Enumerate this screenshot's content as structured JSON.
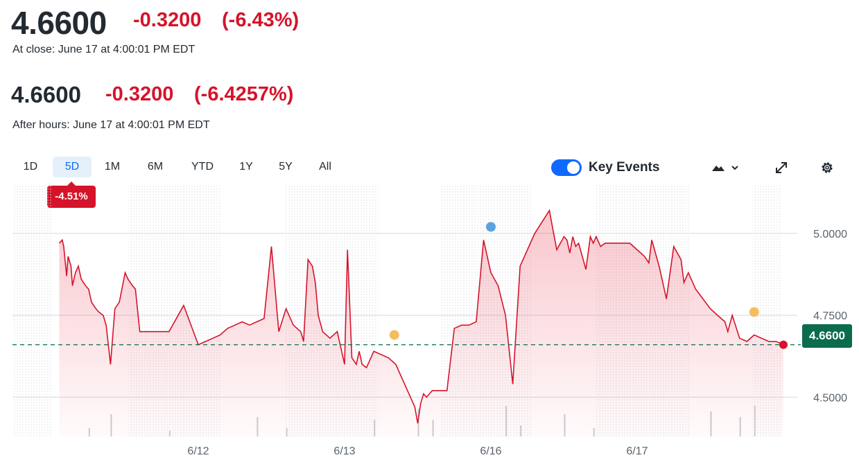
{
  "quote": {
    "price": "4.6600",
    "change": "-0.3200",
    "change_pct": "(-6.43%)",
    "close_label": "At close: June 17 at 4:00:01 PM EDT"
  },
  "after_hours": {
    "price": "4.6600",
    "change": "-0.3200",
    "change_pct": "(-6.4257%)",
    "label": "After hours: June 17 at 4:00:01 PM EDT"
  },
  "range_tabs": [
    "1D",
    "5D",
    "1M",
    "6M",
    "YTD",
    "1Y",
    "5Y",
    "All"
  ],
  "active_tab": "5D",
  "period_change": "-4.51%",
  "key_events_label": "Key Events",
  "current_price_tag": "4.6600",
  "colors": {
    "down": "#d5132a",
    "accent": "#0f69ff",
    "price_tag": "#0b6b4f",
    "event_blue": "#5aa3e0",
    "event_orange": "#f6bd60"
  },
  "icons": [
    "moon-icon",
    "mountain-chart-type-icon",
    "chevron-down-icon",
    "expand-icon",
    "gear-icon"
  ],
  "chart_data": {
    "type": "area",
    "x_ticks": [
      "6/12",
      "6/13",
      "6/16",
      "6/17"
    ],
    "y_ticks": [
      "5.0000",
      "4.7500",
      "4.5000"
    ],
    "ylim": [
      4.38,
      5.15
    ],
    "xlim": [
      0,
      5
    ],
    "reference_line": 4.66,
    "series": [
      {
        "x": [
          0.05,
          0.07,
          0.08,
          0.1,
          0.11,
          0.13,
          0.14,
          0.16,
          0.18,
          0.2,
          0.23,
          0.25,
          0.27,
          0.3,
          0.32,
          0.35,
          0.37,
          0.4,
          0.43,
          0.46,
          0.5,
          0.52,
          0.55,
          0.57,
          0.6,
          0.62,
          0.65,
          0.7,
          0.72,
          0.75,
          0.8,
          0.9,
          1.0,
          1.05,
          1.1,
          1.15,
          1.2,
          1.25,
          1.3,
          1.35,
          1.4,
          1.45,
          1.5,
          1.55,
          1.6,
          1.65,
          1.7,
          1.72,
          1.75,
          1.78,
          1.8,
          1.82,
          1.85,
          1.9,
          1.95,
          2.0,
          2.02,
          2.05,
          2.08,
          2.1,
          2.12,
          2.15,
          2.2,
          2.3,
          2.35,
          2.45,
          2.48,
          2.5,
          2.52,
          2.54,
          2.56,
          2.58,
          2.6,
          2.65,
          2.7,
          2.75,
          2.8,
          2.85,
          2.9,
          2.95,
          3.0,
          3.05,
          3.1,
          3.15,
          3.2,
          3.3,
          3.4,
          3.45,
          3.5,
          3.52,
          3.54,
          3.56,
          3.58,
          3.6,
          3.65,
          3.68,
          3.7,
          3.72,
          3.75,
          3.78,
          3.8,
          3.82,
          3.85,
          3.88,
          3.9,
          3.95,
          4.0,
          4.05,
          4.08,
          4.1,
          4.15,
          4.2,
          4.25,
          4.3,
          4.32,
          4.35,
          4.4,
          4.45,
          4.5,
          4.55,
          4.6,
          4.62,
          4.65,
          4.7,
          4.75,
          4.8,
          4.85,
          4.9,
          4.95,
          5.0
        ],
        "values": [
          4.97,
          4.98,
          4.96,
          4.87,
          4.93,
          4.9,
          4.84,
          4.88,
          4.9,
          4.86,
          4.84,
          4.83,
          4.79,
          4.77,
          4.76,
          4.75,
          4.72,
          4.6,
          4.77,
          4.79,
          4.88,
          4.86,
          4.84,
          4.83,
          4.7,
          4.7,
          4.7,
          4.7,
          4.7,
          4.7,
          4.7,
          4.78,
          4.66,
          4.67,
          4.68,
          4.69,
          4.71,
          4.72,
          4.73,
          4.72,
          4.73,
          4.74,
          4.96,
          4.7,
          4.77,
          4.72,
          4.7,
          4.67,
          4.92,
          4.9,
          4.85,
          4.75,
          4.7,
          4.68,
          4.7,
          4.6,
          4.95,
          4.62,
          4.6,
          4.64,
          4.6,
          4.59,
          4.64,
          4.62,
          4.6,
          4.5,
          4.47,
          4.42,
          4.48,
          4.51,
          4.5,
          4.51,
          4.52,
          4.52,
          4.52,
          4.71,
          4.72,
          4.72,
          4.73,
          4.98,
          4.88,
          4.84,
          4.75,
          4.54,
          4.9,
          5.0,
          5.07,
          4.95,
          4.99,
          4.98,
          4.94,
          4.99,
          4.96,
          4.97,
          4.89,
          4.99,
          4.97,
          4.99,
          4.96,
          4.97,
          4.97,
          4.97,
          4.97,
          4.97,
          4.97,
          4.97,
          4.95,
          4.93,
          4.91,
          4.98,
          4.9,
          4.8,
          4.96,
          4.92,
          4.85,
          4.88,
          4.83,
          4.8,
          4.77,
          4.75,
          4.73,
          4.7,
          4.75,
          4.68,
          4.67,
          4.69,
          4.68,
          4.67,
          4.67,
          4.66
        ]
      }
    ],
    "events": [
      {
        "x": 2.34,
        "y": 4.69,
        "kind": "orange"
      },
      {
        "x": 3.0,
        "y": 5.02,
        "kind": "blue"
      },
      {
        "x": 4.8,
        "y": 4.76,
        "kind": "orange"
      }
    ],
    "volume": [
      {
        "x": 0.4,
        "v": 0.4
      },
      {
        "x": 0.25,
        "v": 0.15
      },
      {
        "x": 0.8,
        "v": 0.1
      },
      {
        "x": 1.4,
        "v": 0.35
      },
      {
        "x": 1.6,
        "v": 0.15
      },
      {
        "x": 2.2,
        "v": 0.3
      },
      {
        "x": 2.5,
        "v": 0.5
      },
      {
        "x": 2.6,
        "v": 0.3
      },
      {
        "x": 3.1,
        "v": 0.55
      },
      {
        "x": 3.2,
        "v": 0.2
      },
      {
        "x": 3.5,
        "v": 0.4
      },
      {
        "x": 3.7,
        "v": 0.15
      },
      {
        "x": 4.5,
        "v": 0.45
      },
      {
        "x": 4.7,
        "v": 0.35
      },
      {
        "x": 4.8,
        "v": 0.55
      }
    ]
  }
}
